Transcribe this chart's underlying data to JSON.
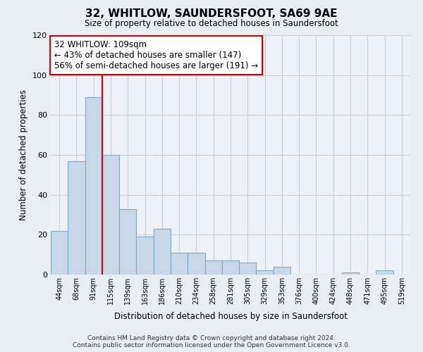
{
  "title": "32, WHITLOW, SAUNDERSFOOT, SA69 9AE",
  "subtitle": "Size of property relative to detached houses in Saundersfoot",
  "xlabel": "Distribution of detached houses by size in Saundersfoot",
  "ylabel": "Number of detached properties",
  "bar_labels": [
    "44sqm",
    "68sqm",
    "91sqm",
    "115sqm",
    "139sqm",
    "163sqm",
    "186sqm",
    "210sqm",
    "234sqm",
    "258sqm",
    "281sqm",
    "305sqm",
    "329sqm",
    "353sqm",
    "376sqm",
    "400sqm",
    "424sqm",
    "448sqm",
    "471sqm",
    "495sqm",
    "519sqm"
  ],
  "bar_values": [
    22,
    57,
    89,
    60,
    33,
    19,
    23,
    11,
    11,
    7,
    7,
    6,
    2,
    4,
    0,
    0,
    0,
    1,
    0,
    2,
    0
  ],
  "bar_color": "#c8d8e8",
  "bar_edge_color": "#7aaac8",
  "vline_x_index": 3,
  "vline_color": "#cc0000",
  "annotation_line1": "32 WHITLOW: 109sqm",
  "annotation_line2": "← 43% of detached houses are smaller (147)",
  "annotation_line3": "56% of semi-detached houses are larger (191) →",
  "annotation_box_color": "#cc0000",
  "ylim": [
    0,
    120
  ],
  "yticks": [
    0,
    20,
    40,
    60,
    80,
    100,
    120
  ],
  "footer_line1": "Contains HM Land Registry data © Crown copyright and database right 2024.",
  "footer_line2": "Contains public sector information licensed under the Open Government Licence v3.0.",
  "background_color": "#e8eef4",
  "plot_bg_color": "#eef2f8",
  "grid_color": "#c8d0dc"
}
